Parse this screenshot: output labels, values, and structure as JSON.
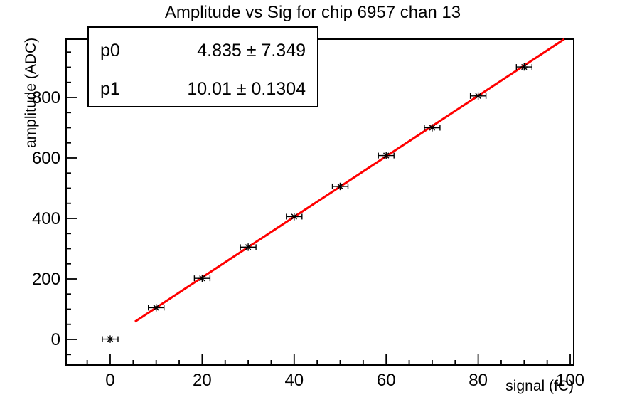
{
  "stats_box": {
    "rows": [
      {
        "name": "p0",
        "value": "4.835 ± 7.349"
      },
      {
        "name": "p1",
        "value": "10.01 ± 0.1304"
      }
    ]
  },
  "chart_data": {
    "type": "scatter",
    "title": "Amplitude vs Sig for chip 6957 chan 13",
    "xlabel": "signal (fC)",
    "ylabel": "amplitude (ADC)",
    "x": [
      0,
      10,
      20,
      30,
      40,
      50,
      60,
      70,
      80,
      90
    ],
    "y": [
      1,
      105,
      202,
      305,
      406,
      506,
      608,
      700,
      805,
      901
    ],
    "xerr": 1.7,
    "xlim": [
      -9.58,
      100.77
    ],
    "ylim": [
      -84.7,
      992.9
    ],
    "x_major_ticks": [
      0,
      20,
      40,
      60,
      80,
      100
    ],
    "x_minor_step": 5,
    "y_major_ticks": [
      0,
      200,
      400,
      600,
      800
    ],
    "y_minor_step": 50,
    "grid": false,
    "legend": "none",
    "marker": "asterisk-with-x-error-bars",
    "fit": {
      "p0": 4.835,
      "p1": 10.01,
      "x_start": 5.4,
      "x_end": 98.7
    },
    "colors": {
      "fit_line": "#ff0000",
      "marker": "#000000",
      "axis": "#000000",
      "background": "#ffffff"
    }
  }
}
